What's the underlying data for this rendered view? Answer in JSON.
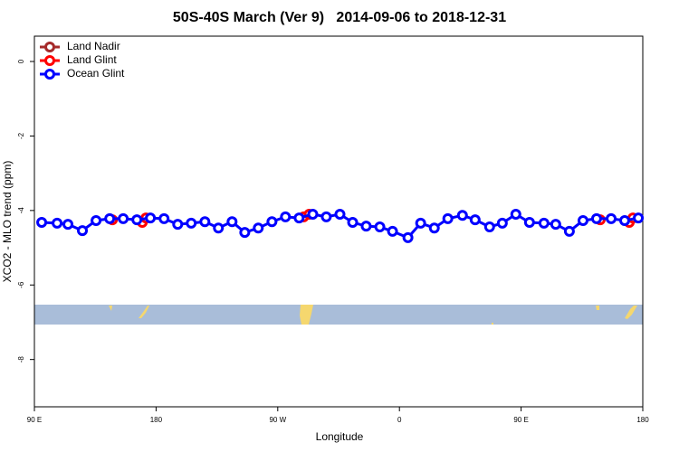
{
  "chart_data": {
    "type": "line",
    "title": "50S-40S March (Ver 9)   2014-09-06 to 2018-12-31",
    "xlabel": "Longitude",
    "ylabel": "XCO2 - MLO trend (ppm)",
    "xlim": [
      90,
      540
    ],
    "ylim": [
      -9.27,
      0.68
    ],
    "xticks": [
      {
        "value": 90,
        "label": "90 E"
      },
      180,
      {
        "value": 270,
        "label": "90 W"
      },
      {
        "value": 360,
        "label": "0"
      },
      {
        "value": 450,
        "label": "90 E"
      },
      {
        "value": 540,
        "label": "180"
      }
    ],
    "yticks": [
      0,
      -2,
      -4,
      -6,
      -8
    ],
    "legend": "top-left",
    "series": [
      {
        "name": "Land Nadir",
        "color": "#a52a2a",
        "x": [],
        "values": []
      },
      {
        "name": "Land Glint",
        "color": "#ff0000",
        "x": [
          147.7,
          null,
          169.8,
          172.5,
          null,
          289.2,
          293.2,
          null,
          508.5,
          null,
          530,
          532.7
        ],
        "values": [
          -4.25,
          null,
          -4.32,
          -4.2,
          null,
          -4.17,
          -4.1,
          null,
          -4.25,
          null,
          -4.32,
          -4.2
        ]
      },
      {
        "name": "Ocean Glint",
        "color": "#0000ff",
        "x": [
          95.4,
          106.8,
          114.8,
          125.5,
          135.6,
          145.7,
          155.7,
          165.8,
          175.8,
          185.9,
          196,
          206,
          216.1,
          226.1,
          236.2,
          245.6,
          255.6,
          265.7,
          275.7,
          285.8,
          295.9,
          305.9,
          316,
          325.4,
          335.4,
          345.5,
          354.9,
          366.3,
          375.7,
          385.8,
          395.8,
          406.6,
          416,
          426.7,
          436.1,
          446.1,
          456.2,
          466.9,
          475.6,
          485.7,
          495.8,
          505.8,
          516.6,
          526.6,
          536.7
        ],
        "values": [
          -4.32,
          -4.34,
          -4.37,
          -4.54,
          -4.27,
          -4.22,
          -4.22,
          -4.25,
          -4.2,
          -4.22,
          -4.37,
          -4.34,
          -4.3,
          -4.47,
          -4.3,
          -4.59,
          -4.47,
          -4.3,
          -4.17,
          -4.2,
          -4.1,
          -4.17,
          -4.1,
          -4.32,
          -4.42,
          -4.44,
          -4.56,
          -4.73,
          -4.34,
          -4.47,
          -4.22,
          -4.13,
          -4.25,
          -4.44,
          -4.34,
          -4.1,
          -4.32,
          -4.34,
          -4.37,
          -4.56,
          -4.27,
          -4.22,
          -4.22,
          -4.27,
          -4.2
        ]
      }
    ]
  }
}
